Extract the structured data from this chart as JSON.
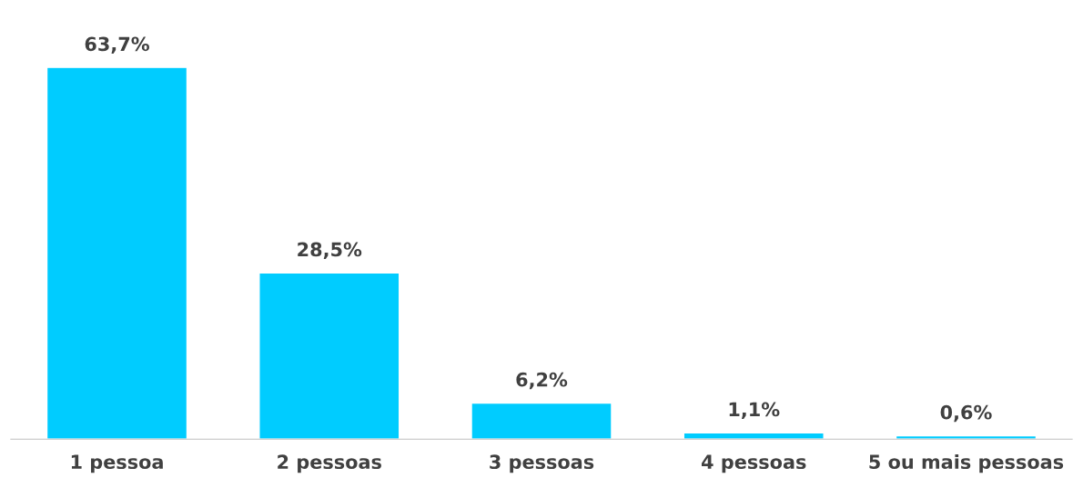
{
  "chart_data": {
    "type": "bar",
    "categories": [
      "1 pessoa",
      "2 pessoas",
      "3 pessoas",
      "4 pessoas",
      "5 ou mais pessoas"
    ],
    "values": [
      63.7,
      28.5,
      6.2,
      1.1,
      0.6
    ],
    "value_labels": [
      "63,7%",
      "28,5%",
      "6,2%",
      "1,1%",
      "0,6%"
    ],
    "color": "#00ccff",
    "grid": false,
    "legend": false
  }
}
